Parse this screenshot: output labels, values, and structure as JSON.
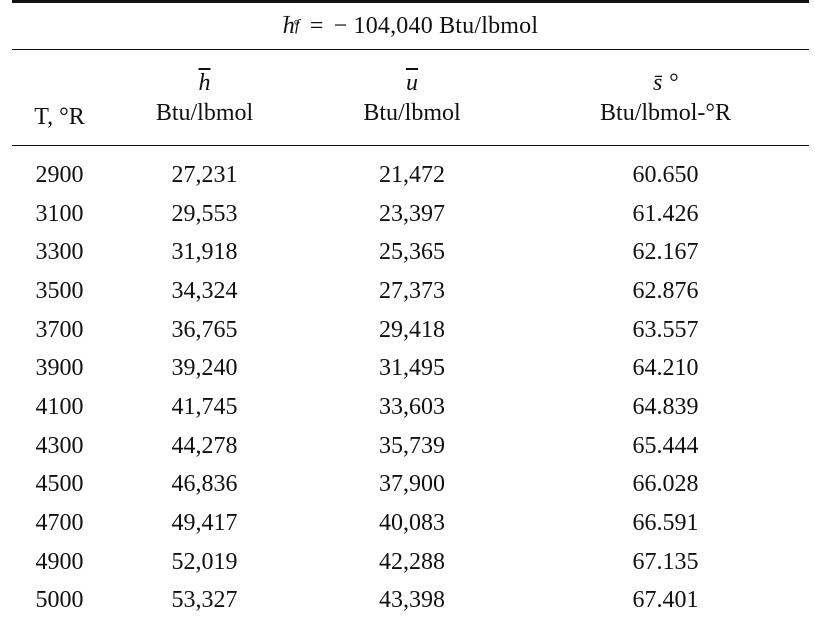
{
  "formation": {
    "symbol": "h",
    "subscript": "f",
    "superscript": "°",
    "equals": "=",
    "value": "− 104,040 Btu/lbmol"
  },
  "columns": [
    {
      "symbol": "",
      "unit": "T, °R"
    },
    {
      "symbol": "h",
      "unit": "Btu/lbmol"
    },
    {
      "symbol": "u",
      "unit": "Btu/lbmol"
    },
    {
      "symbol": "s̄ °",
      "unit": "Btu/lbmol-°R"
    }
  ],
  "rows": [
    [
      "2900",
      "27,231",
      "21,472",
      "60.650"
    ],
    [
      "3100",
      "29,553",
      "23,397",
      "61.426"
    ],
    [
      "3300",
      "31,918",
      "25,365",
      "62.167"
    ],
    [
      "3500",
      "34,324",
      "27,373",
      "62.876"
    ],
    [
      "3700",
      "36,765",
      "29,418",
      "63.557"
    ],
    [
      "3900",
      "39,240",
      "31,495",
      "64.210"
    ],
    [
      "4100",
      "41,745",
      "33,603",
      "64.839"
    ],
    [
      "4300",
      "44,278",
      "35,739",
      "65.444"
    ],
    [
      "4500",
      "46,836",
      "37,900",
      "66.028"
    ],
    [
      "4700",
      "49,417",
      "40,083",
      "66.591"
    ],
    [
      "4900",
      "52,019",
      "42,288",
      "67.135"
    ],
    [
      "5000",
      "53,327",
      "43,398",
      "67.401"
    ]
  ]
}
